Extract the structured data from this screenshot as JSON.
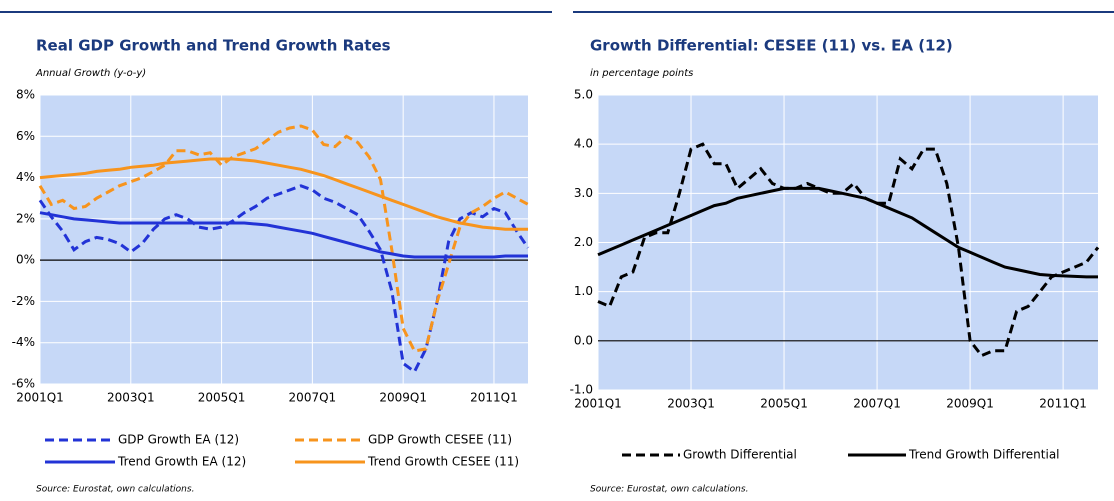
{
  "chart_data": [
    {
      "type": "line",
      "title": "Real GDP Growth and Trend Growth Rates",
      "subtitle": "Annual Growth (y-o-y)",
      "categories": [
        "2001Q1",
        null,
        null,
        null,
        null,
        null,
        null,
        null,
        "2003Q1",
        null,
        null,
        null,
        null,
        null,
        null,
        null,
        "2005Q1",
        null,
        null,
        null,
        null,
        null,
        null,
        null,
        "2007Q1",
        null,
        null,
        null,
        null,
        null,
        null,
        null,
        "2009Q1",
        null,
        null,
        null,
        null,
        null,
        null,
        null,
        "2011Q1",
        null,
        null,
        null
      ],
      "series": [
        {
          "name": "GDP Growth EA (12)",
          "color": "#2233d6",
          "dash": true,
          "values": [
            2.9,
            2.1,
            1.4,
            0.5,
            0.9,
            1.1,
            1.0,
            0.8,
            0.4,
            0.8,
            1.5,
            2.0,
            2.2,
            2.0,
            1.6,
            1.5,
            1.6,
            1.9,
            2.3,
            2.6,
            3.0,
            3.2,
            3.4,
            3.6,
            3.4,
            3.0,
            2.8,
            2.5,
            2.2,
            1.4,
            0.5,
            -1.5,
            -5.0,
            -5.4,
            -4.3,
            -2.0,
            0.9,
            2.0,
            2.3,
            2.1,
            2.5,
            2.3,
            1.4,
            0.6
          ]
        },
        {
          "name": "GDP Growth CESEE (11)",
          "color": "#f7941d",
          "dash": true,
          "values": [
            3.6,
            2.7,
            2.9,
            2.5,
            2.6,
            3.0,
            3.3,
            3.6,
            3.8,
            4.0,
            4.3,
            4.6,
            5.3,
            5.3,
            5.1,
            5.2,
            4.6,
            5.0,
            5.2,
            5.4,
            5.8,
            6.2,
            6.4,
            6.5,
            6.3,
            5.6,
            5.5,
            6.0,
            5.7,
            5.0,
            3.9,
            0.5,
            -3.3,
            -4.4,
            -4.3,
            -2.0,
            -0.2,
            1.6,
            2.3,
            2.6,
            3.0,
            3.3,
            3.0,
            2.7
          ]
        },
        {
          "name": "Trend Growth EA (12)",
          "color": "#2233d6",
          "dash": false,
          "values": [
            2.3,
            2.2,
            2.1,
            2.0,
            1.95,
            1.9,
            1.85,
            1.8,
            1.8,
            1.8,
            1.8,
            1.8,
            1.8,
            1.8,
            1.8,
            1.8,
            1.8,
            1.8,
            1.8,
            1.75,
            1.7,
            1.6,
            1.5,
            1.4,
            1.3,
            1.15,
            1.0,
            0.85,
            0.7,
            0.55,
            0.4,
            0.3,
            0.2,
            0.15,
            0.15,
            0.15,
            0.15,
            0.15,
            0.15,
            0.15,
            0.15,
            0.2,
            0.2,
            0.2
          ]
        },
        {
          "name": "Trend Growth CESEE (11)",
          "color": "#f7941d",
          "dash": false,
          "values": [
            4.0,
            4.05,
            4.1,
            4.15,
            4.2,
            4.3,
            4.35,
            4.4,
            4.5,
            4.55,
            4.6,
            4.7,
            4.75,
            4.8,
            4.85,
            4.9,
            4.9,
            4.9,
            4.85,
            4.8,
            4.7,
            4.6,
            4.5,
            4.4,
            4.25,
            4.1,
            3.9,
            3.7,
            3.5,
            3.3,
            3.1,
            2.9,
            2.7,
            2.5,
            2.3,
            2.1,
            1.95,
            1.8,
            1.7,
            1.6,
            1.55,
            1.5,
            1.5,
            1.5
          ]
        }
      ],
      "ylim": [
        -6,
        8
      ],
      "yticks": [
        {
          "value": -6,
          "label": "-6%"
        },
        {
          "value": -4,
          "label": "-4%"
        },
        {
          "value": -2,
          "label": "-2%"
        },
        {
          "value": 0,
          "label": "0%"
        },
        {
          "value": 2,
          "label": "2%"
        },
        {
          "value": 4,
          "label": "4%"
        },
        {
          "value": 6,
          "label": "6%"
        },
        {
          "value": 8,
          "label": "8%"
        }
      ],
      "grid": true,
      "source": "Source: Eurostat, own calculations."
    },
    {
      "type": "line",
      "title": "Growth Differential: CESEE (11) vs. EA (12)",
      "subtitle": "in percentage points",
      "categories": [
        "2001Q1",
        null,
        null,
        null,
        null,
        null,
        null,
        null,
        "2003Q1",
        null,
        null,
        null,
        null,
        null,
        null,
        null,
        "2005Q1",
        null,
        null,
        null,
        null,
        null,
        null,
        null,
        "2007Q1",
        null,
        null,
        null,
        null,
        null,
        null,
        null,
        "2009Q1",
        null,
        null,
        null,
        null,
        null,
        null,
        null,
        "2011Q1",
        null,
        null,
        null
      ],
      "series": [
        {
          "name": "Growth Differential",
          "color": "#000000",
          "dash": true,
          "values": [
            0.8,
            0.7,
            1.3,
            1.4,
            2.1,
            2.2,
            2.2,
            3.0,
            3.9,
            4.0,
            3.6,
            3.6,
            3.1,
            3.3,
            3.5,
            3.2,
            3.1,
            3.1,
            3.2,
            3.1,
            3.0,
            3.0,
            3.2,
            2.9,
            2.8,
            2.8,
            3.7,
            3.5,
            3.9,
            3.9,
            3.2,
            1.9,
            0.0,
            -0.3,
            -0.2,
            -0.2,
            0.6,
            0.7,
            1.0,
            1.3,
            1.4,
            1.5,
            1.6,
            1.9
          ]
        },
        {
          "name": "Trend Growth Differential",
          "color": "#000000",
          "dash": false,
          "values": [
            1.75,
            1.85,
            1.95,
            2.05,
            2.15,
            2.25,
            2.35,
            2.45,
            2.55,
            2.65,
            2.75,
            2.8,
            2.9,
            2.95,
            3.0,
            3.05,
            3.1,
            3.1,
            3.1,
            3.1,
            3.05,
            3.0,
            2.95,
            2.9,
            2.8,
            2.7,
            2.6,
            2.5,
            2.35,
            2.2,
            2.05,
            1.9,
            1.8,
            1.7,
            1.6,
            1.5,
            1.45,
            1.4,
            1.35,
            1.33,
            1.32,
            1.31,
            1.3,
            1.3
          ]
        }
      ],
      "ylim": [
        -1,
        5
      ],
      "yticks": [
        {
          "value": -1,
          "label": "-1.0"
        },
        {
          "value": 0,
          "label": "0.0"
        },
        {
          "value": 1,
          "label": "1.0"
        },
        {
          "value": 2,
          "label": "2.0"
        },
        {
          "value": 3,
          "label": "3.0"
        },
        {
          "value": 4,
          "label": "4.0"
        },
        {
          "value": 5,
          "label": "5.0"
        }
      ],
      "grid": true,
      "source": "Source: Eurostat, own calculations."
    }
  ]
}
